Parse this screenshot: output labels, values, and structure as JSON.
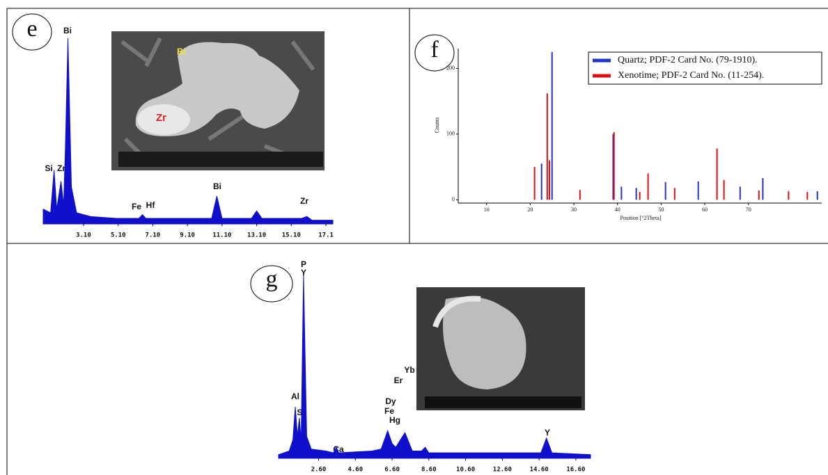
{
  "chart_data": [
    {
      "type": "spectrum",
      "panel": "e",
      "color": "#1010cc",
      "x": [
        0.77,
        1.2,
        1.4,
        1.55,
        1.8,
        1.95,
        2.05,
        2.2,
        2.4,
        2.7,
        3.5,
        5,
        6.3,
        6.5,
        6.7,
        8,
        10.5,
        10.8,
        11.1,
        12.8,
        13.1,
        13.4,
        15.7,
        16,
        16.3,
        17.5
      ],
      "values": [
        8,
        6,
        29,
        8,
        23,
        10,
        40,
        100,
        20,
        6,
        4,
        3,
        3,
        5,
        3,
        3,
        3,
        15,
        3,
        3,
        7,
        3,
        3,
        4,
        2,
        2
      ],
      "xlim": [
        0.77,
        17.5
      ],
      "ylim": [
        0,
        100
      ],
      "xticks": [
        {
          "value": 3.1,
          "label": "3.10"
        },
        {
          "value": 5.1,
          "label": "5.10"
        },
        {
          "value": 7.1,
          "label": "7.10"
        },
        {
          "value": 9.1,
          "label": "9.10"
        },
        {
          "value": 11.1,
          "label": "11.10"
        },
        {
          "value": 13.1,
          "label": "13.10"
        },
        {
          "value": 15.1,
          "label": "15.10"
        },
        17.1
      ],
      "peak_labels": [
        "Bi",
        "Si",
        "Zr",
        "Fe",
        "Hf",
        "Bi",
        "Zr"
      ],
      "inset_labels": [
        "Bi",
        "Zr"
      ]
    },
    {
      "type": "stem",
      "panel": "f",
      "xlabel": "Position [°2Theta]",
      "ylabel": "Counts",
      "xlim": [
        3.5,
        86.8
      ],
      "ylim": [
        -5,
        230
      ],
      "xticks": [
        10,
        20,
        30,
        40,
        50,
        60,
        70
      ],
      "yticks": [
        0,
        100,
        200
      ],
      "legend": "upper right",
      "series": [
        {
          "name": "Quartz; PDF-2 Card No. (79-1910).",
          "color": "#2233cc",
          "x": [
            22.6,
            25.0,
            39.0,
            40.9,
            44.3,
            51.0,
            58.5,
            68.1,
            73.3,
            85.8
          ],
          "values": [
            55,
            225,
            100,
            20,
            18,
            27,
            28,
            20,
            33,
            13
          ]
        },
        {
          "name": "Xenotime; PDF-2 Card No. (11-254).",
          "color": "#dd1111",
          "x": [
            21.0,
            23.9,
            24.4,
            31.4,
            39.2,
            45.1,
            47.0,
            53.1,
            62.8,
            64.4,
            72.4,
            79.2,
            83.5
          ],
          "values": [
            50,
            162,
            60,
            15,
            103,
            12,
            40,
            18,
            78,
            30,
            14,
            13,
            12
          ]
        }
      ]
    },
    {
      "type": "spectrum",
      "panel": "g",
      "color": "#1010cc",
      "x": [
        0.42,
        1.0,
        1.2,
        1.33,
        1.45,
        1.55,
        1.65,
        1.78,
        1.95,
        2.2,
        3.0,
        3.4,
        3.56,
        3.7,
        5.5,
        6.0,
        6.36,
        6.6,
        6.8,
        7.3,
        7.7,
        8.2,
        8.4,
        8.6,
        14.7,
        15.0,
        15.3,
        17.4
      ],
      "values": [
        2,
        4,
        10,
        28,
        12,
        22,
        10,
        100,
        12,
        5,
        4,
        3,
        6,
        3,
        4,
        5,
        15,
        8,
        6,
        14,
        4,
        4,
        6,
        3,
        3,
        11,
        3,
        2
      ],
      "xlim": [
        0.42,
        17.4
      ],
      "ylim": [
        0,
        100
      ],
      "xticks": [
        {
          "value": 2.6,
          "label": "2.60"
        },
        {
          "value": 4.6,
          "label": "4.60"
        },
        {
          "value": 6.6,
          "label": "6.60"
        },
        {
          "value": 8.6,
          "label": "8.60"
        },
        {
          "value": 10.6,
          "label": "10.60"
        },
        {
          "value": 12.6,
          "label": "12.60"
        },
        {
          "value": 14.6,
          "label": "14.60"
        },
        {
          "value": 16.6,
          "label": "16.60"
        }
      ],
      "peak_labels": [
        "P",
        "Y",
        "Al",
        "Si",
        "Ca",
        "Yb",
        "Er",
        "Dy",
        "Fe",
        "Hg",
        "Y"
      ]
    }
  ]
}
